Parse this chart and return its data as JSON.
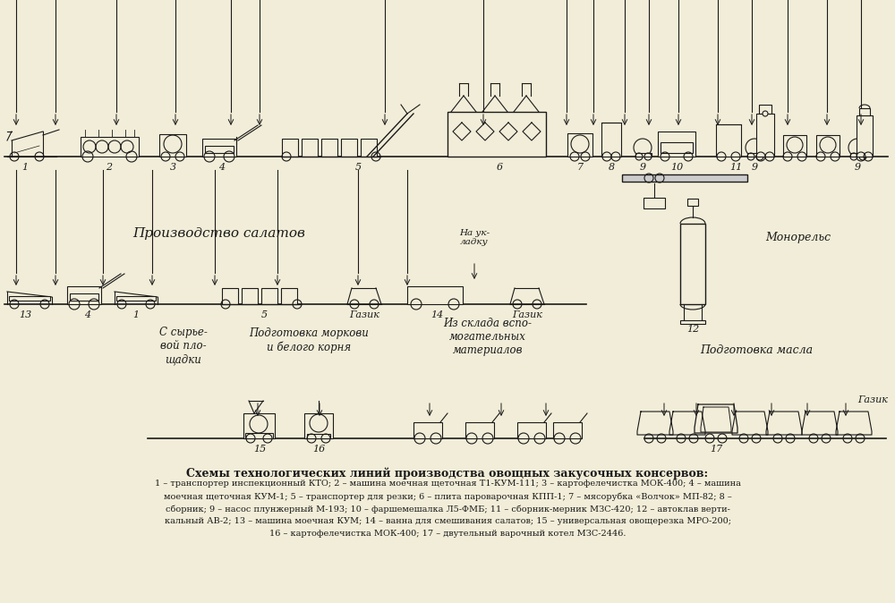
{
  "bg_color": "#f2edd8",
  "line_color": "#1a1a1a",
  "title_main": "Схемы технологических линий производства овощных закусочных консервов:",
  "caption_line1": "1 – транспортер инспекционный КТО; 2 – машина моечная щеточная Т1-КУМ-111; 3 – картофелечистка МОК-400; 4 – машина",
  "caption_line2": "моечная щеточная КУМ-1; 5 – транспортер для резки; 6 – плита пароварочная КПП-1; 7 – мясорубка «Волчок» МП-82; 8 –",
  "caption_line3": "сборник; 9 – насос плунжерный М-193; 10 – фаршемешалка Л5-ФМБ; 11 – сборник-мерник МЗС-420; 12 – автоклав верти-",
  "caption_line4": "кальный АВ-2; 13 – машина моечная КУМ; 14 – ванна для смешивания салатов; 15 – универсальная овощерезка МРО-200;",
  "caption_line5": "16 – картофелечистка МОК-400; 17 – двутельный варочный котел МЗС-2446.",
  "section2_title": "Производство салатов",
  "section2_monorail": "Монорельс",
  "label_na_ukladku": "На ук-\nладку",
  "label_gazik_row2a": "Газик",
  "label_gazik_row2b": "Газик",
  "label_gazik_row3": "Газик",
  "label_s_syryevoy": "С сырье-\nвой пло-\nщадки",
  "label_podg_morkovi": "Подготовка моркови\nи белого корня",
  "label_iz_sklada": "Из склада вспо-\nмогательных\nматериалов",
  "label_podg_masla": "Подготовка масла"
}
